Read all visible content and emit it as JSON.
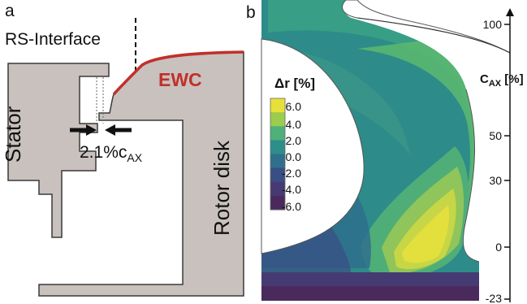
{
  "panel_a": {
    "panel_letter": "a",
    "interface_label": "RS-Interface",
    "stator_label": "Stator",
    "rotor_label": "Rotor disk",
    "ewc_label": "EWC",
    "gap_label_main": "2.1%c",
    "gap_label_sub": "AX",
    "colors": {
      "geometry_fill": "#c9c1bd",
      "geometry_stroke": "#3a3a3a",
      "ewc": "#c0302b"
    }
  },
  "panel_b": {
    "panel_letter": "b",
    "colorbar": {
      "title": "Δr [%]",
      "ticks": [
        "6.0",
        "4.0",
        "2.0",
        "0.0",
        "-2.0",
        "-4.0",
        "-6.0"
      ],
      "colors": [
        "#e8e03a",
        "#9ccc4e",
        "#4fb07a",
        "#2e8f8a",
        "#2f6f8c",
        "#3b4d85",
        "#473a72",
        "#4a2a5c"
      ]
    },
    "axis": {
      "title_main": "C",
      "title_sub": "AX",
      "title_unit": " [%]",
      "ticks": [
        "100",
        "50",
        "30",
        "0",
        "-23"
      ]
    }
  }
}
